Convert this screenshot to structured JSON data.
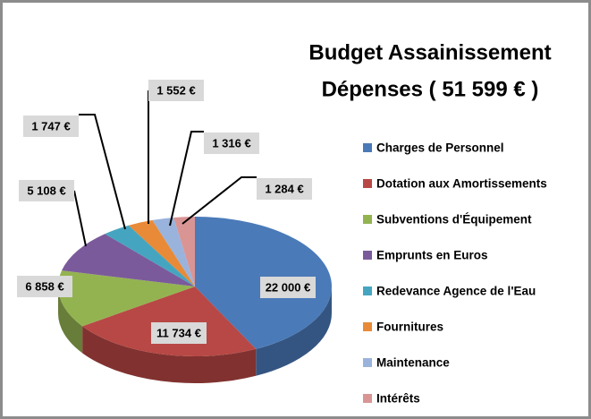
{
  "chart_data": {
    "type": "pie3d",
    "title": "Budget Assainissement",
    "subtitle": "Dépenses ( 51 599 € )",
    "categories": [
      "Charges de Personnel",
      "Dotation aux Amortissements",
      "Subventions d'Équipement",
      "Emprunts en Euros",
      "Redevance Agence de l'Eau",
      "Fournitures",
      "Maintenance",
      "Intérêts"
    ],
    "values": [
      22000,
      11734,
      6858,
      5108,
      1747,
      1552,
      1316,
      1284
    ],
    "value_labels": [
      "22 000 €",
      "11 734 €",
      "6 858 €",
      "5 108 €",
      "1 747 €",
      "1 552 €",
      "1 316 €",
      "1 284 €"
    ],
    "colors": [
      "#4a7ab8",
      "#b84845",
      "#93b351",
      "#7b5a9b",
      "#45a5c0",
      "#e88a37",
      "#99b3dc",
      "#d99594"
    ],
    "legend": "right"
  }
}
